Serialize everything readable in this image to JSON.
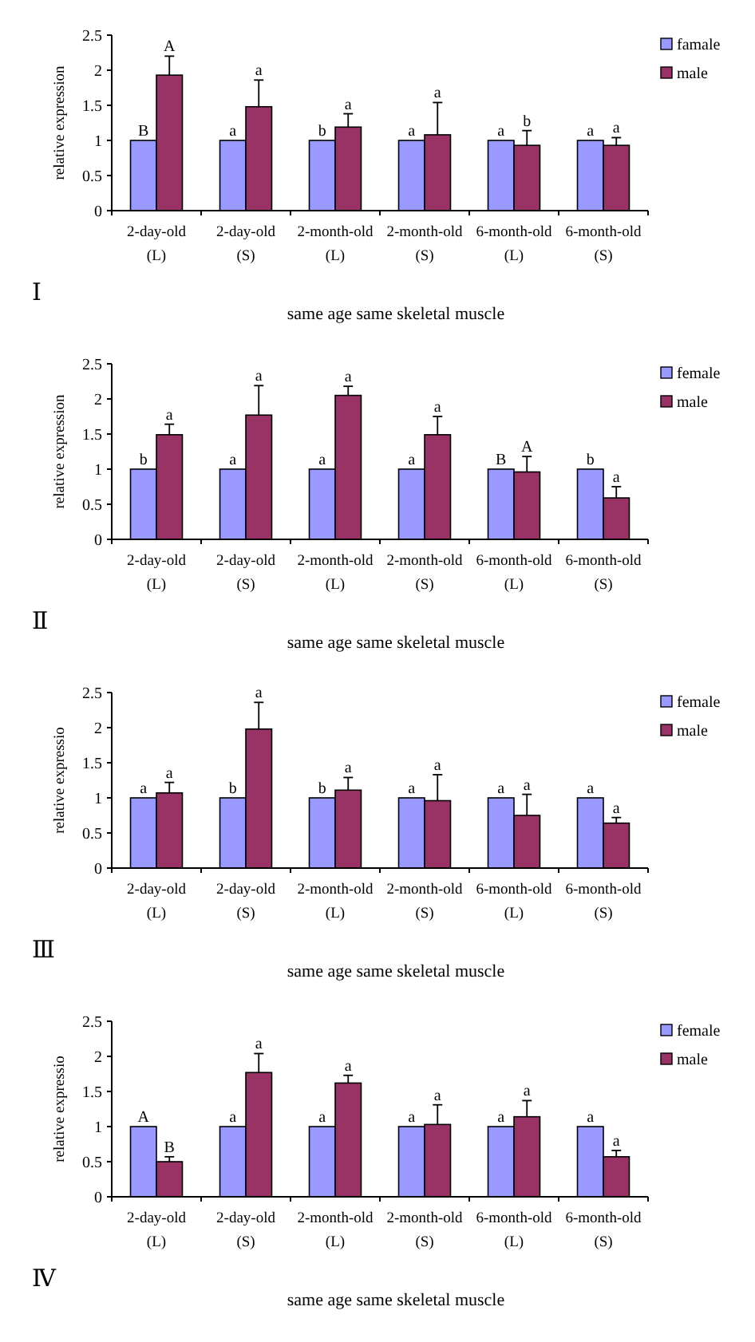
{
  "chart_data": [
    {
      "type": "bar",
      "xlabel": "same age same skeletal muscle",
      "ylabel": "relative expression",
      "annotations": [
        "Ⅰ"
      ],
      "categories": [
        "2-day-old (L)",
        "2-day-old (S)",
        "2-month-old (L)",
        "2-month-old (S)",
        "6-month-old (L)",
        "6-month-old (S)"
      ],
      "ylim": [
        0,
        2.5
      ],
      "yticks": [
        0,
        0.5,
        1,
        1.5,
        2,
        2.5
      ],
      "legend": "right",
      "series": [
        {
          "name": "famale",
          "color": "#9999ff",
          "values": [
            1,
            1,
            1,
            1,
            1,
            1
          ],
          "value_labels": [
            "B",
            "a",
            "b",
            "a",
            "a",
            "a"
          ]
        },
        {
          "name": "male",
          "color": "#993366",
          "values": [
            1.93,
            1.48,
            1.19,
            1.08,
            0.93,
            0.93
          ],
          "errors": [
            [
              1.93,
              2.2
            ],
            [
              1.48,
              1.86
            ],
            [
              1.19,
              1.38
            ],
            [
              1.08,
              1.54
            ],
            [
              0.93,
              1.14
            ],
            [
              0.93,
              1.04
            ]
          ],
          "value_labels": [
            "A",
            "a",
            "a",
            "a",
            "b",
            "a"
          ]
        }
      ]
    },
    {
      "type": "bar",
      "xlabel": "same age same skeletal muscle",
      "ylabel": "relative expression",
      "annotations": [
        "Ⅱ"
      ],
      "categories": [
        "2-day-old (L)",
        "2-day-old (S)",
        "2-month-old (L)",
        "2-month-old (S)",
        "6-month-old (L)",
        "6-month-old (S)"
      ],
      "ylim": [
        0,
        2.5
      ],
      "yticks": [
        0,
        0.5,
        1,
        1.5,
        2,
        2.5
      ],
      "legend": "right",
      "series": [
        {
          "name": "female",
          "color": "#9999ff",
          "values": [
            1,
            1,
            1,
            1,
            1,
            1
          ],
          "value_labels": [
            "b",
            "a",
            "a",
            "a",
            "B",
            "b"
          ]
        },
        {
          "name": "male",
          "color": "#993366",
          "values": [
            1.49,
            1.77,
            2.05,
            1.49,
            0.96,
            0.59
          ],
          "errors": [
            [
              1.49,
              1.64
            ],
            [
              1.77,
              2.19
            ],
            [
              2.05,
              2.18
            ],
            [
              1.49,
              1.75
            ],
            [
              0.96,
              1.18
            ],
            [
              0.59,
              0.75
            ]
          ],
          "value_labels": [
            "a",
            "a",
            "a",
            "a",
            "A",
            "a"
          ]
        }
      ]
    },
    {
      "type": "bar",
      "xlabel": "same age same skeletal muscle",
      "ylabel": "relative expressio",
      "annotations": [
        "Ⅲ"
      ],
      "categories": [
        "2-day-old (L)",
        "2-day-old (S)",
        "2-month-old (L)",
        "2-month-old (S)",
        "6-month-old (L)",
        "6-month-old (S)"
      ],
      "ylim": [
        0,
        2.5
      ],
      "yticks": [
        0,
        0.5,
        1,
        1.5,
        2,
        2.5
      ],
      "legend": "right",
      "series": [
        {
          "name": "female",
          "color": "#9999ff",
          "values": [
            1,
            1,
            1,
            1,
            1,
            1
          ],
          "value_labels": [
            "a",
            "b",
            "b",
            "a",
            "a",
            "a"
          ]
        },
        {
          "name": "male",
          "color": "#993366",
          "values": [
            1.07,
            1.98,
            1.11,
            0.96,
            0.75,
            0.64
          ],
          "errors": [
            [
              1.07,
              1.22
            ],
            [
              1.98,
              2.36
            ],
            [
              1.11,
              1.29
            ],
            [
              0.96,
              1.33
            ],
            [
              0.75,
              1.05
            ],
            [
              0.64,
              0.72
            ]
          ],
          "value_labels": [
            "a",
            "a",
            "a",
            "a",
            "a",
            "a"
          ]
        }
      ]
    },
    {
      "type": "bar",
      "xlabel": "same age same skeletal muscle",
      "ylabel": "relative expressio",
      "annotations": [
        "Ⅳ"
      ],
      "categories": [
        "2-day-old (L)",
        "2-day-old (S)",
        "2-month-old (L)",
        "2-month-old (S)",
        "6-month-old (L)",
        "6-month-old (S)"
      ],
      "ylim": [
        0,
        2.5
      ],
      "yticks": [
        0,
        0.5,
        1,
        1.5,
        2,
        2.5
      ],
      "legend": "right",
      "series": [
        {
          "name": "female",
          "color": "#9999ff",
          "values": [
            1,
            1,
            1,
            1,
            1,
            1
          ],
          "value_labels": [
            "A",
            "a",
            "a",
            "a",
            "a",
            "a"
          ]
        },
        {
          "name": "male",
          "color": "#993366",
          "values": [
            0.5,
            1.77,
            1.62,
            1.03,
            1.14,
            0.57
          ],
          "errors": [
            [
              0.5,
              0.57
            ],
            [
              1.77,
              2.04
            ],
            [
              1.62,
              1.73
            ],
            [
              1.03,
              1.31
            ],
            [
              1.14,
              1.37
            ],
            [
              0.57,
              0.66
            ]
          ],
          "value_labels": [
            "B",
            "a",
            "a",
            "a",
            "a",
            "a"
          ]
        }
      ]
    }
  ]
}
